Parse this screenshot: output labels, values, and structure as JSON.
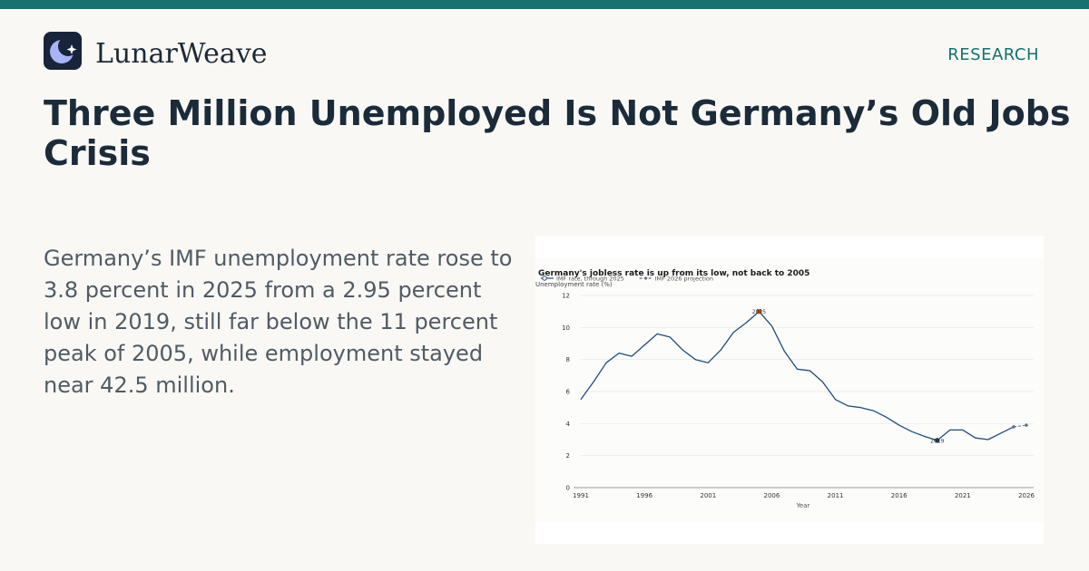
{
  "brand": {
    "name": "LunarWeave",
    "logo_icon": "crescent-moon-star-icon",
    "accent": "#167170"
  },
  "section_label": "RESEARCH",
  "headline": "Three Million Unemployed Is Not Germany’s Old Jobs Crisis",
  "summary": "Germany’s IMF unemployment rate rose to 3.8 percent in 2025 from a 2.95 percent low in 2019, still far below the 11 percent peak of 2005, while employment stayed near 42.5 million.",
  "chart_data": {
    "type": "line",
    "title": "Germany's jobless rate is up from its low, not back to 2005",
    "xlabel": "Year",
    "ylabel": "Unemployment rate (%)",
    "xlim": [
      1991,
      2026
    ],
    "ylim": [
      0,
      12
    ],
    "x_ticks": [
      1991,
      1996,
      2001,
      2006,
      2011,
      2016,
      2021,
      2026
    ],
    "y_ticks": [
      0,
      2,
      4,
      6,
      8,
      10,
      12
    ],
    "grid": "horizontal",
    "legend_position": "top-left",
    "series": [
      {
        "name": "IMF rate, through 2025",
        "color": "#1f4e79",
        "x": [
          1991,
          1992,
          1993,
          1994,
          1995,
          1996,
          1997,
          1998,
          1999,
          2000,
          2001,
          2002,
          2003,
          2004,
          2005,
          2006,
          2007,
          2008,
          2009,
          2010,
          2011,
          2012,
          2013,
          2014,
          2015,
          2016,
          2017,
          2018,
          2019,
          2020,
          2021,
          2022,
          2023,
          2024,
          2025
        ],
        "y": [
          5.5,
          6.6,
          7.8,
          8.4,
          8.2,
          8.9,
          9.6,
          9.4,
          8.6,
          8.0,
          7.8,
          8.6,
          9.7,
          10.3,
          11.0,
          10.1,
          8.5,
          7.4,
          7.3,
          6.6,
          5.5,
          5.1,
          5.0,
          4.8,
          4.4,
          3.9,
          3.5,
          3.2,
          2.95,
          3.6,
          3.6,
          3.1,
          3.0,
          3.4,
          3.8
        ]
      },
      {
        "name": "IMF 2026 projection",
        "color": "#5b7082",
        "dashed": true,
        "x": [
          2025,
          2026
        ],
        "y": [
          3.8,
          3.9
        ]
      }
    ],
    "annotations": [
      {
        "label": "2005",
        "x": 2005,
        "y": 11.0,
        "marker_color": "#b8591a"
      },
      {
        "label": "2019",
        "x": 2019,
        "y": 2.95,
        "marker_color": "#1f3a5f"
      }
    ]
  }
}
